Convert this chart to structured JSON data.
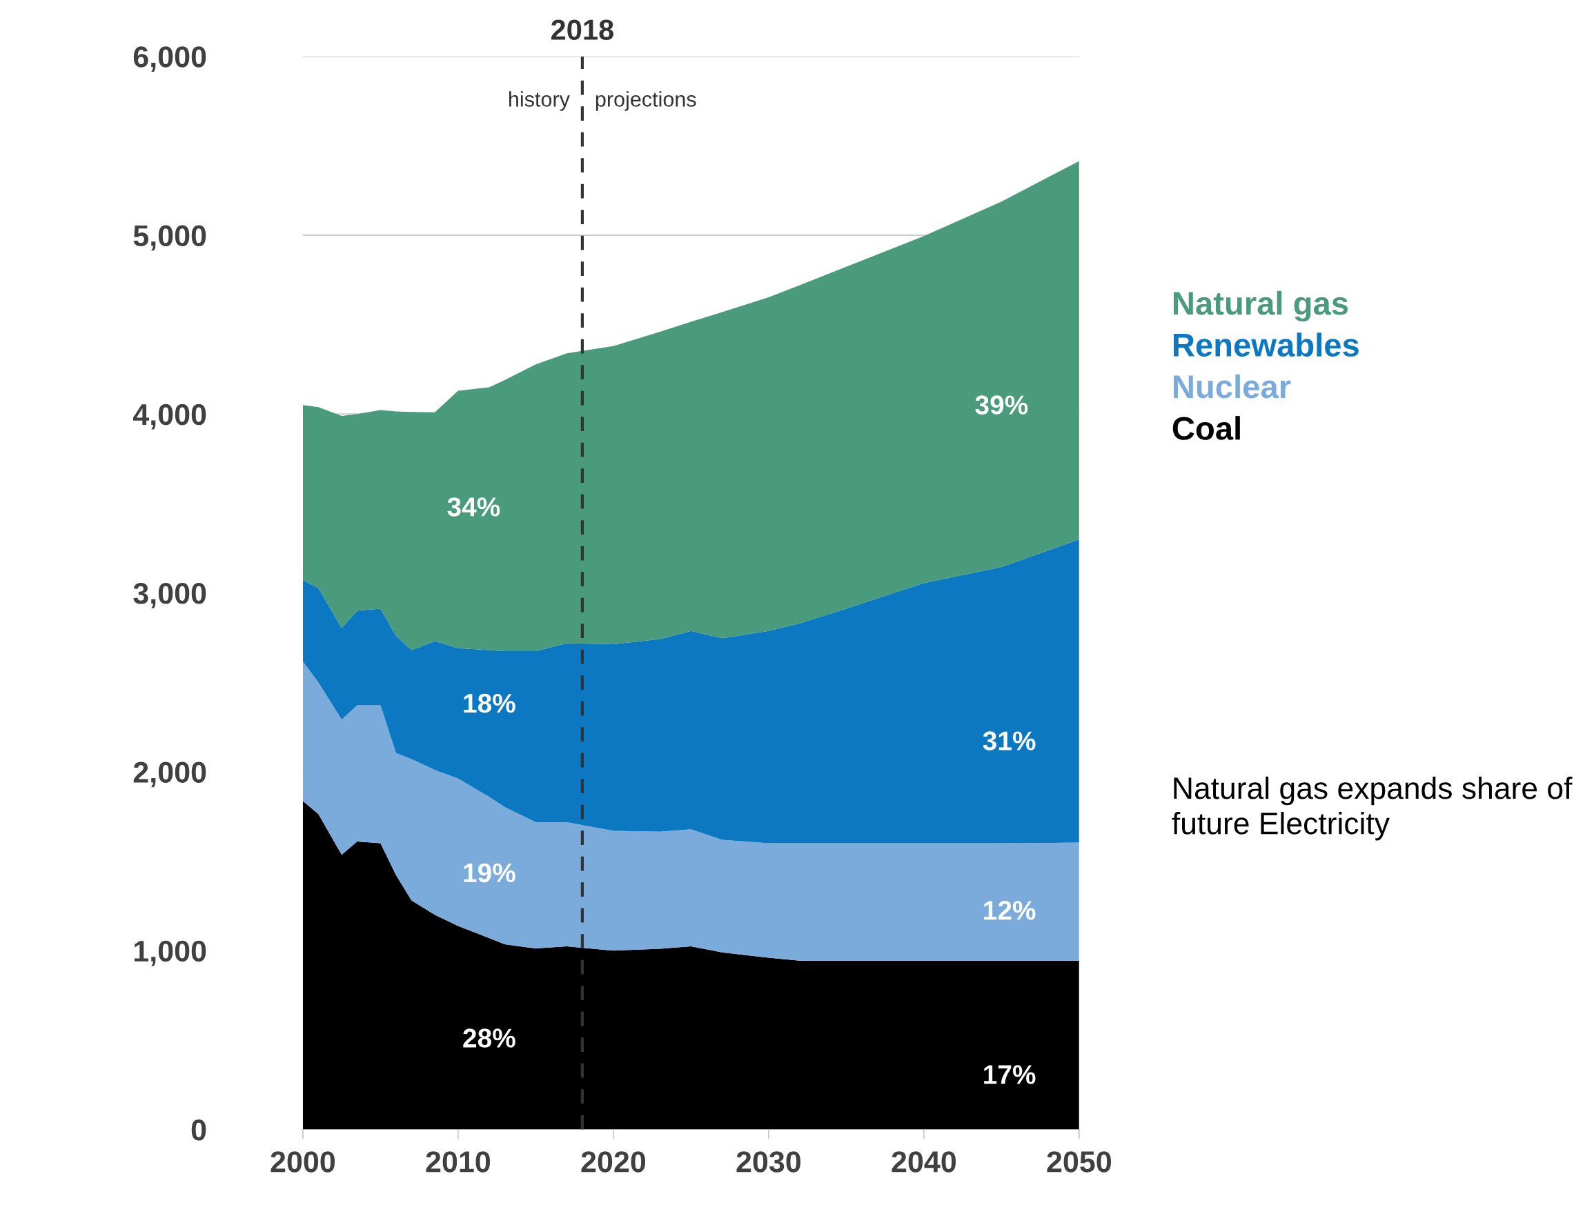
{
  "chart_data": {
    "type": "area",
    "stacked": true,
    "x": [
      2000,
      2001,
      2002.5,
      2003.5,
      2005,
      2006,
      2007,
      2008.5,
      2010,
      2012,
      2013,
      2015,
      2017,
      2020,
      2023,
      2025,
      2027,
      2030,
      2032,
      2035,
      2040,
      2045,
      2050
    ],
    "series": [
      {
        "name": "Coal",
        "color": "#000000",
        "values": [
          1837,
          1763,
          1536,
          1610,
          1600,
          1422,
          1280,
          1200,
          1138,
          1070,
          1035,
          1012,
          1024,
          1000,
          1010,
          1024,
          990,
          960,
          944,
          944,
          944,
          944,
          944
        ]
      },
      {
        "name": "Nuclear",
        "color": "#7aabdb",
        "values": [
          780,
          737,
          756,
          762,
          772,
          683,
          791,
          810,
          824,
          790,
          768,
          706,
          694,
          670,
          655,
          654,
          630,
          640,
          656,
          656,
          656,
          656,
          660
        ]
      },
      {
        "name": "Renewables",
        "color": "#0b78c1",
        "values": [
          455,
          526,
          512,
          529,
          540,
          654,
          609,
          720,
          729,
          820,
          871,
          956,
          1001,
          1043,
          1077,
          1109,
          1127,
          1187,
          1230,
          1312,
          1455,
          1545,
          1695
        ]
      },
      {
        "name": "Natural gas",
        "color": "#4a9a7c",
        "values": [
          978,
          1013,
          1186,
          1099,
          1110,
          1256,
          1332,
          1280,
          1439,
          1470,
          1516,
          1604,
          1621,
          1667,
          1718,
          1729,
          1823,
          1866,
          1890,
          1912,
          1940,
          2043,
          2116
        ]
      }
    ],
    "xlim": [
      2000,
      2050
    ],
    "xticks": [
      2000,
      2010,
      2020,
      2030,
      2040,
      2050
    ],
    "ylim": [
      0,
      6000
    ],
    "yticks": [
      {
        "value": 0,
        "label": "0"
      },
      {
        "value": 1000,
        "label": "1,000"
      },
      {
        "value": 2000,
        "label": "2,000"
      },
      {
        "value": 3000,
        "label": "3,000"
      },
      {
        "value": 4000,
        "label": "4,000"
      },
      {
        "value": 5000,
        "label": "5,000"
      },
      {
        "value": 6000,
        "label": "6,000"
      }
    ],
    "grid": "y",
    "legend": "right",
    "ref_lines": [
      {
        "axis": "x",
        "value": 2018,
        "label": "2018",
        "color": "#333333",
        "line_style": "dashed"
      }
    ],
    "annotations": [
      "history",
      "projections",
      "Natural gas expands share of future Electricity",
      "34%",
      "18%",
      "19%",
      "28%",
      "39%",
      "31%",
      "12%",
      "17%"
    ]
  }
}
